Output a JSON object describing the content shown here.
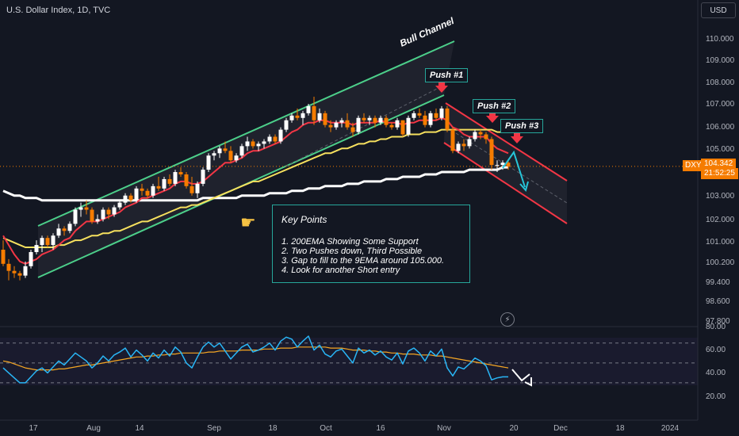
{
  "header": {
    "symbol_title": "U.S. Dollar Index, 1D, TVC",
    "currency_button": "USD"
  },
  "price_scale": {
    "ticks": [
      "110.000",
      "109.000",
      "108.000",
      "107.000",
      "106.000",
      "105.000",
      "103.000",
      "102.000",
      "101.000",
      "100.200",
      "99.400",
      "98.600",
      "97.800"
    ],
    "current_symbol": "DXY",
    "current_price": "104.342",
    "countdown": "21:52:25"
  },
  "rsi_scale": {
    "ticks": [
      "80.00",
      "60.00",
      "40.00",
      "20.00"
    ]
  },
  "time_axis": {
    "ticks": [
      "17",
      "Aug",
      "14",
      "Sep",
      "18",
      "Oct",
      "16",
      "Nov",
      "20",
      "Dec",
      "18",
      "2024"
    ]
  },
  "annotations": {
    "bull_channel": "Bull Channel",
    "push1": "Push #1",
    "push2": "Push #2",
    "push3": "Push #3",
    "key_points_title": "Key Points",
    "key_points": [
      "1. 200EMA Showing Some Support",
      "2. Two Pushes down, Third Possible",
      "3. Gap to fill to the 9EMA around 105.000.",
      "4. Look for another Short entry"
    ]
  },
  "colors": {
    "background": "#131722",
    "bull": "#ffffff",
    "bear": "#f57c00",
    "ema9": "#f23645",
    "ema50": "#f6e05e",
    "ema200": "#ffffff",
    "channel_up": "#4ccf8a",
    "channel_down": "#f23645",
    "rsi": "#29b6f6",
    "rsi_ma": "#f5a623",
    "arrow_teal": "#26c6da"
  },
  "icons": {
    "pointer": "pointing-hand-icon",
    "lightning": "lightning-icon"
  },
  "chart_data": {
    "type": "candlestick",
    "price_range": [
      97.6,
      110.4
    ],
    "dates": [
      "Jul 13",
      "Jul 14",
      "Jul 17",
      "Jul 18",
      "Jul 19",
      "Jul 20",
      "Jul 21",
      "Jul 24",
      "Jul 25",
      "Jul 26",
      "Jul 27",
      "Jul 28",
      "Jul 31",
      "Aug 1",
      "Aug 2",
      "Aug 3",
      "Aug 4",
      "Aug 7",
      "Aug 8",
      "Aug 9",
      "Aug 10",
      "Aug 11",
      "Aug 14",
      "Aug 15",
      "Aug 16",
      "Aug 17",
      "Aug 18",
      "Aug 21",
      "Aug 22",
      "Aug 23",
      "Aug 24",
      "Aug 25",
      "Aug 28",
      "Aug 29",
      "Aug 30",
      "Aug 31",
      "Sep 1",
      "Sep 4",
      "Sep 5",
      "Sep 6",
      "Sep 7",
      "Sep 8",
      "Sep 11",
      "Sep 12",
      "Sep 13",
      "Sep 14",
      "Sep 15",
      "Sep 18",
      "Sep 19",
      "Sep 20",
      "Sep 21",
      "Sep 22",
      "Sep 25",
      "Sep 26",
      "Sep 27",
      "Sep 28",
      "Sep 29",
      "Oct 2",
      "Oct 3",
      "Oct 4",
      "Oct 5",
      "Oct 6",
      "Oct 9",
      "Oct 10",
      "Oct 11",
      "Oct 12",
      "Oct 13",
      "Oct 16",
      "Oct 17",
      "Oct 18",
      "Oct 19",
      "Oct 20",
      "Oct 23",
      "Oct 24",
      "Oct 25",
      "Oct 26",
      "Oct 27",
      "Oct 30",
      "Oct 31",
      "Nov 1",
      "Nov 2",
      "Nov 3",
      "Nov 6",
      "Nov 7",
      "Nov 8",
      "Nov 9",
      "Nov 10",
      "Nov 13",
      "Nov 14",
      "Nov 15",
      "Nov 16",
      "Nov 17"
    ],
    "ohlc": [
      [
        100.8,
        101.2,
        100.1,
        100.2
      ],
      [
        100.2,
        100.4,
        99.5,
        99.9
      ],
      [
        99.9,
        100.1,
        99.6,
        99.8
      ],
      [
        99.8,
        99.9,
        99.5,
        99.7
      ],
      [
        99.7,
        100.3,
        99.6,
        100.1
      ],
      [
        100.1,
        100.8,
        100.0,
        100.7
      ],
      [
        100.7,
        101.2,
        100.6,
        101.0
      ],
      [
        101.0,
        101.4,
        100.7,
        101.3
      ],
      [
        101.3,
        101.4,
        100.9,
        101.0
      ],
      [
        101.0,
        101.5,
        100.8,
        101.4
      ],
      [
        101.4,
        101.9,
        101.3,
        101.7
      ],
      [
        101.7,
        101.8,
        101.4,
        101.6
      ],
      [
        101.6,
        102.0,
        101.5,
        101.9
      ],
      [
        101.9,
        102.6,
        101.8,
        102.5
      ],
      [
        102.5,
        102.8,
        102.2,
        102.6
      ],
      [
        102.6,
        102.9,
        102.3,
        102.5
      ],
      [
        102.5,
        102.6,
        101.9,
        102.0
      ],
      [
        102.0,
        102.3,
        101.9,
        102.1
      ],
      [
        102.1,
        102.6,
        102.0,
        102.5
      ],
      [
        102.5,
        102.6,
        102.1,
        102.3
      ],
      [
        102.3,
        102.7,
        102.2,
        102.6
      ],
      [
        102.6,
        102.9,
        102.5,
        102.8
      ],
      [
        102.8,
        103.2,
        102.7,
        103.1
      ],
      [
        103.1,
        103.2,
        102.8,
        102.9
      ],
      [
        102.9,
        103.5,
        102.8,
        103.4
      ],
      [
        103.4,
        103.6,
        103.1,
        103.3
      ],
      [
        103.3,
        103.4,
        103.0,
        103.1
      ],
      [
        103.1,
        103.6,
        103.0,
        103.5
      ],
      [
        103.5,
        103.9,
        103.3,
        103.4
      ],
      [
        103.4,
        103.9,
        103.3,
        103.8
      ],
      [
        103.8,
        104.0,
        103.5,
        103.6
      ],
      [
        103.6,
        104.2,
        103.5,
        104.1
      ],
      [
        104.1,
        104.3,
        103.9,
        104.0
      ],
      [
        104.0,
        104.1,
        103.4,
        103.5
      ],
      [
        103.5,
        103.9,
        103.1,
        103.2
      ],
      [
        103.2,
        103.7,
        103.0,
        103.6
      ],
      [
        103.6,
        104.3,
        103.5,
        104.2
      ],
      [
        104.2,
        104.9,
        104.1,
        104.8
      ],
      [
        104.8,
        105.0,
        104.6,
        104.9
      ],
      [
        104.9,
        105.2,
        104.7,
        105.1
      ],
      [
        105.1,
        105.4,
        104.9,
        105.0
      ],
      [
        105.0,
        105.2,
        104.5,
        104.6
      ],
      [
        104.6,
        104.9,
        104.5,
        104.8
      ],
      [
        104.8,
        105.3,
        104.7,
        105.2
      ],
      [
        105.2,
        105.6,
        105.0,
        105.4
      ],
      [
        105.4,
        105.5,
        105.1,
        105.2
      ],
      [
        105.2,
        105.4,
        105.0,
        105.3
      ],
      [
        105.3,
        105.5,
        105.1,
        105.4
      ],
      [
        105.4,
        105.7,
        105.3,
        105.6
      ],
      [
        105.6,
        105.7,
        105.3,
        105.4
      ],
      [
        105.4,
        106.0,
        105.3,
        105.9
      ],
      [
        105.9,
        106.4,
        105.8,
        106.3
      ],
      [
        106.3,
        106.6,
        106.2,
        106.5
      ],
      [
        106.5,
        106.8,
        106.3,
        106.4
      ],
      [
        106.4,
        106.7,
        106.1,
        106.6
      ],
      [
        106.6,
        107.0,
        106.5,
        106.9
      ],
      [
        106.9,
        107.3,
        106.1,
        106.3
      ],
      [
        106.3,
        106.8,
        106.2,
        106.6
      ],
      [
        106.6,
        106.7,
        106.0,
        106.1
      ],
      [
        106.1,
        106.3,
        105.8,
        106.0
      ],
      [
        106.0,
        106.3,
        105.9,
        106.2
      ],
      [
        106.2,
        106.4,
        106.0,
        106.3
      ],
      [
        106.3,
        106.6,
        105.9,
        106.0
      ],
      [
        106.0,
        106.2,
        105.6,
        105.8
      ],
      [
        105.8,
        106.5,
        105.7,
        106.4
      ],
      [
        106.4,
        106.6,
        106.2,
        106.3
      ],
      [
        106.3,
        106.5,
        106.1,
        106.4
      ],
      [
        106.4,
        106.5,
        106.0,
        106.2
      ],
      [
        106.2,
        106.5,
        106.1,
        106.4
      ],
      [
        106.4,
        106.5,
        106.0,
        106.1
      ],
      [
        106.1,
        106.2,
        105.9,
        106.0
      ],
      [
        106.0,
        106.4,
        105.9,
        106.3
      ],
      [
        106.3,
        106.3,
        105.6,
        105.7
      ],
      [
        105.7,
        106.5,
        105.6,
        106.4
      ],
      [
        106.4,
        106.7,
        106.3,
        106.6
      ],
      [
        106.6,
        106.8,
        106.4,
        106.5
      ],
      [
        106.5,
        106.7,
        106.0,
        106.1
      ],
      [
        106.1,
        106.7,
        106.0,
        106.6
      ],
      [
        106.6,
        106.8,
        106.3,
        106.4
      ],
      [
        106.4,
        106.9,
        106.3,
        106.8
      ],
      [
        106.8,
        106.9,
        105.8,
        105.9
      ],
      [
        105.9,
        106.0,
        104.9,
        105.0
      ],
      [
        105.0,
        105.4,
        104.9,
        105.3
      ],
      [
        105.3,
        105.5,
        105.0,
        105.2
      ],
      [
        105.2,
        105.6,
        105.1,
        105.5
      ],
      [
        105.5,
        105.9,
        105.4,
        105.8
      ],
      [
        105.8,
        105.9,
        105.5,
        105.7
      ],
      [
        105.7,
        105.8,
        105.3,
        105.5
      ],
      [
        105.5,
        105.6,
        104.2,
        104.4
      ],
      [
        104.4,
        104.6,
        104.1,
        104.4
      ],
      [
        104.4,
        104.6,
        104.2,
        104.5
      ],
      [
        104.5,
        104.6,
        104.2,
        104.34
      ]
    ],
    "ema9": [
      101.4,
      101.0,
      100.6,
      100.3,
      100.2,
      100.3,
      100.4,
      100.6,
      100.7,
      100.8,
      101.0,
      101.2,
      101.3,
      101.6,
      101.8,
      102.0,
      102.0,
      102.0,
      102.1,
      102.2,
      102.3,
      102.4,
      102.6,
      102.7,
      102.8,
      103.0,
      103.0,
      103.1,
      103.2,
      103.3,
      103.4,
      103.6,
      103.7,
      103.7,
      103.6,
      103.6,
      103.7,
      103.9,
      104.1,
      104.3,
      104.5,
      104.5,
      104.6,
      104.7,
      104.9,
      105.0,
      105.0,
      105.1,
      105.2,
      105.3,
      105.4,
      105.6,
      105.8,
      105.9,
      106.1,
      106.2,
      106.2,
      106.3,
      106.3,
      106.2,
      106.2,
      106.2,
      106.2,
      106.1,
      106.2,
      106.2,
      106.2,
      106.2,
      106.3,
      106.2,
      106.2,
      106.2,
      106.1,
      106.2,
      106.2,
      106.3,
      106.3,
      106.3,
      106.3,
      106.4,
      106.3,
      106.0,
      105.9,
      105.7,
      105.6,
      105.6,
      105.6,
      105.6,
      105.3,
      105.1,
      105.0,
      104.9
    ],
    "ema50": [
      101.3,
      101.2,
      101.1,
      101.0,
      100.9,
      100.9,
      100.9,
      100.9,
      100.9,
      100.9,
      101.0,
      101.0,
      101.1,
      101.2,
      101.2,
      101.3,
      101.4,
      101.4,
      101.5,
      101.5,
      101.6,
      101.6,
      101.7,
      101.8,
      101.9,
      102.0,
      102.0,
      102.1,
      102.2,
      102.3,
      102.4,
      102.5,
      102.6,
      102.6,
      102.7,
      102.7,
      102.8,
      102.9,
      103.0,
      103.1,
      103.2,
      103.3,
      103.4,
      103.5,
      103.6,
      103.7,
      103.7,
      103.8,
      103.9,
      104.0,
      104.1,
      104.2,
      104.3,
      104.4,
      104.5,
      104.6,
      104.7,
      104.8,
      104.9,
      104.9,
      105.0,
      105.1,
      105.1,
      105.2,
      105.3,
      105.3,
      105.4,
      105.4,
      105.5,
      105.5,
      105.6,
      105.6,
      105.6,
      105.7,
      105.7,
      105.7,
      105.8,
      105.8,
      105.8,
      105.9,
      105.9,
      105.9,
      105.9,
      105.9,
      105.9,
      105.9,
      105.9,
      105.9,
      105.9,
      105.8,
      105.8,
      105.8
    ],
    "ema200": [
      103.3,
      103.2,
      103.1,
      103.1,
      103.0,
      103.0,
      103.0,
      102.9,
      102.9,
      102.9,
      102.9,
      102.9,
      102.9,
      102.9,
      102.9,
      102.9,
      102.9,
      102.9,
      102.9,
      102.9,
      102.9,
      102.9,
      102.9,
      102.9,
      102.9,
      102.9,
      102.9,
      102.9,
      102.9,
      102.9,
      102.9,
      102.9,
      102.9,
      102.9,
      102.9,
      102.9,
      103.0,
      103.0,
      103.0,
      103.0,
      103.0,
      103.0,
      103.0,
      103.1,
      103.1,
      103.1,
      103.1,
      103.1,
      103.2,
      103.2,
      103.2,
      103.2,
      103.3,
      103.3,
      103.3,
      103.4,
      103.4,
      103.4,
      103.5,
      103.5,
      103.5,
      103.5,
      103.6,
      103.6,
      103.6,
      103.7,
      103.7,
      103.7,
      103.7,
      103.8,
      103.8,
      103.8,
      103.9,
      103.9,
      103.9,
      103.9,
      104.0,
      104.0,
      104.0,
      104.1,
      104.1,
      104.1,
      104.1,
      104.1,
      104.2,
      104.2,
      104.2,
      104.2,
      104.2,
      104.2,
      104.3,
      104.3
    ],
    "rsi_range": [
      10,
      85
    ],
    "rsi_levels": [
      70,
      50,
      30
    ],
    "rsi": [
      45,
      40,
      35,
      30,
      30,
      36,
      42,
      45,
      40,
      46,
      52,
      48,
      54,
      60,
      56,
      52,
      45,
      50,
      57,
      52,
      58,
      61,
      65,
      56,
      63,
      58,
      52,
      60,
      55,
      63,
      57,
      66,
      61,
      50,
      45,
      56,
      66,
      71,
      66,
      70,
      62,
      54,
      60,
      66,
      69,
      61,
      63,
      66,
      70,
      63,
      72,
      76,
      74,
      66,
      72,
      77,
      63,
      68,
      59,
      56,
      62,
      64,
      57,
      50,
      65,
      60,
      63,
      58,
      62,
      56,
      53,
      60,
      49,
      62,
      65,
      60,
      52,
      62,
      57,
      64,
      45,
      37,
      46,
      44,
      49,
      55,
      52,
      47,
      33,
      35,
      36,
      36
    ],
    "rsi_ma": [
      52,
      51,
      49,
      47,
      45,
      44,
      43,
      43,
      43,
      43,
      44,
      44,
      45,
      46,
      47,
      48,
      48,
      49,
      50,
      51,
      52,
      53,
      54,
      55,
      56,
      56,
      57,
      57,
      58,
      58,
      59,
      59,
      60,
      60,
      60,
      60,
      60,
      61,
      61,
      62,
      62,
      62,
      62,
      63,
      63,
      63,
      63,
      64,
      64,
      64,
      65,
      65,
      65,
      66,
      66,
      66,
      66,
      66,
      66,
      65,
      65,
      65,
      64,
      63,
      63,
      63,
      62,
      62,
      61,
      61,
      60,
      60,
      59,
      59,
      59,
      58,
      58,
      58,
      57,
      57,
      56,
      55,
      54,
      53,
      52,
      51,
      50,
      49,
      48,
      47,
      46,
      45
    ]
  }
}
